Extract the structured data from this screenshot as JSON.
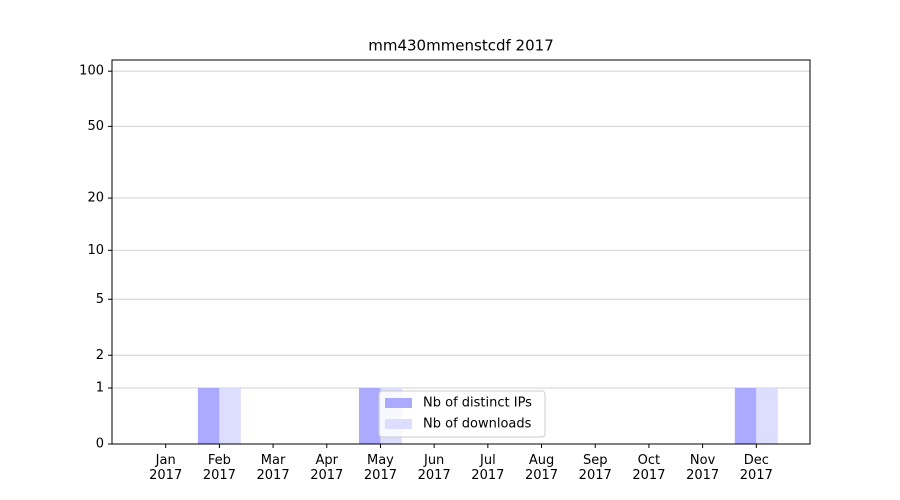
{
  "chart_data": {
    "type": "bar",
    "title": "mm430mmenstcdf 2017",
    "categories": [
      "Jan\n2017",
      "Feb\n2017",
      "Mar\n2017",
      "Apr\n2017",
      "May\n2017",
      "Jun\n2017",
      "Jul\n2017",
      "Aug\n2017",
      "Sep\n2017",
      "Oct\n2017",
      "Nov\n2017",
      "Dec\n2017"
    ],
    "series": [
      {
        "name": "Nb of distinct IPs",
        "color": "#aaaaff",
        "values": [
          0,
          1,
          0,
          0,
          1,
          0,
          0,
          0,
          0,
          0,
          0,
          1
        ]
      },
      {
        "name": "Nb of downloads",
        "color": "#ddddff",
        "values": [
          0,
          1,
          0,
          0,
          1,
          0,
          0,
          0,
          0,
          0,
          0,
          1
        ]
      }
    ],
    "yscale": "log1p",
    "ylim": [
      0,
      115
    ],
    "yticks": [
      0,
      1,
      2,
      5,
      10,
      20,
      50,
      100
    ],
    "grid": true,
    "legend": "lower center"
  }
}
